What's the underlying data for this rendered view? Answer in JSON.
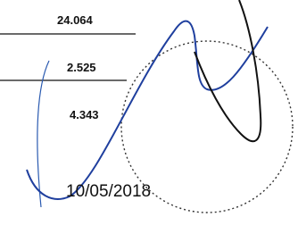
{
  "labels": [
    "24.064",
    "2.525",
    "4.343"
  ],
  "date": "10/05/2018"
}
